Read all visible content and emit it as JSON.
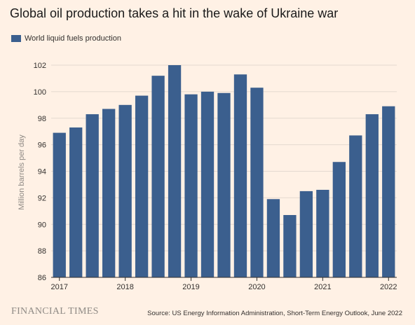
{
  "title": "Global oil production takes a hit in the wake of Ukraine war",
  "footer": {
    "logo": "FINANCIAL TIMES",
    "source": "Source: US Energy Information Administration, Short-Term Energy Outlook, June 2022"
  },
  "colors": {
    "bar": "#3b5f8e",
    "background": "#fff1e5",
    "grid": "#e4d9cf",
    "axis": "#33302e"
  },
  "chart_data": {
    "type": "bar",
    "title": "Global oil production takes a hit in the wake of Ukraine war",
    "ylabel": "Million barrels per day",
    "xlabel": "",
    "legend": "top-left",
    "grid": true,
    "ylim": [
      86,
      102
    ],
    "yticks": [
      86,
      88,
      90,
      92,
      94,
      96,
      98,
      100,
      102
    ],
    "xticks": [
      "2017",
      "2018",
      "2019",
      "2020",
      "2021",
      "2022"
    ],
    "categories": [
      "2017 Q1",
      "2017 Q2",
      "2017 Q3",
      "2017 Q4",
      "2018 Q1",
      "2018 Q2",
      "2018 Q3",
      "2018 Q4",
      "2019 Q1",
      "2019 Q2",
      "2019 Q3",
      "2019 Q4",
      "2020 Q1",
      "2020 Q2",
      "2020 Q3",
      "2020 Q4",
      "2021 Q1",
      "2021 Q2",
      "2021 Q3",
      "2021 Q4",
      "2022 Q1"
    ],
    "series": [
      {
        "name": "World liquid fuels production",
        "values": [
          96.9,
          97.3,
          98.3,
          98.7,
          99.0,
          99.7,
          101.2,
          102.0,
          99.8,
          100.0,
          99.9,
          101.3,
          100.3,
          91.9,
          90.7,
          92.5,
          92.6,
          94.7,
          96.7,
          98.3,
          98.9
        ]
      }
    ]
  }
}
